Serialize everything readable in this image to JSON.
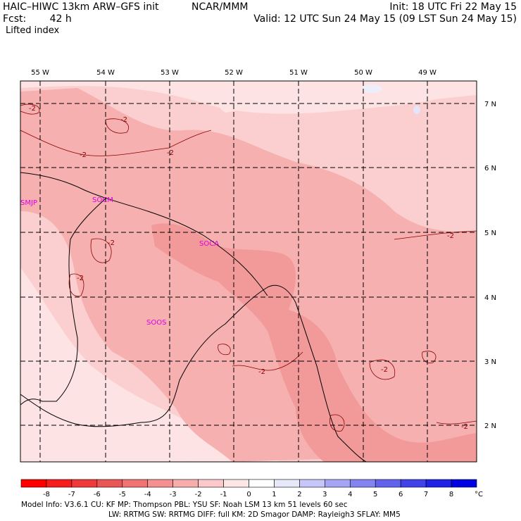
{
  "header": {
    "model": "HAIC–HIWC 13km ARW–GFS init",
    "org": "NCAR/MMM",
    "init": "Init: 18 UTC Fri 22 May 15",
    "fcst_label": "Fcst:",
    "fcst_value": "42 h",
    "valid": "Valid: 12 UTC Sun 24 May 15 (09 LST Sun 24 May 15)",
    "field": "Lifted index"
  },
  "map": {
    "lon_labels": [
      "55 W",
      "54 W",
      "53 W",
      "52 W",
      "51 W",
      "50 W",
      "49 W"
    ],
    "lat_labels": [
      "7 N",
      "6 N",
      "5 N",
      "4 N",
      "3 N",
      "2 N"
    ],
    "contour_label": "-2",
    "stations": [
      "SMJP",
      "SOCM",
      "SOCA",
      "SOOS"
    ],
    "colors": {
      "pale": "#fde3e3",
      "light": "#fbcfcf",
      "medium": "#f6b0b0",
      "strong": "#f29a9a",
      "blue_pale": "#eeeefb",
      "station": "#e000e0"
    }
  },
  "colorbar": {
    "ticks": [
      "-8",
      "-7",
      "-6",
      "-5",
      "-4",
      "-3",
      "-2",
      "-1",
      "0",
      "1",
      "2",
      "3",
      "4",
      "5",
      "6",
      "7",
      "8"
    ],
    "unit": "°C",
    "colors": [
      "#ff0000",
      "#f51d1d",
      "#f03a3a",
      "#ea5656",
      "#f07373",
      "#f49090",
      "#f8adad",
      "#fbc9c9",
      "#fde6e6",
      "#ffffff",
      "#e8e8fb",
      "#c6c6f8",
      "#a5a5f4",
      "#8484f1",
      "#6262ed",
      "#4141ea",
      "#2020e6",
      "#0000e3"
    ]
  },
  "footer": {
    "line1": "Model Info: V3.6.1    CU: KF         MP: Thompson     PBL: YSU        SF: Noah LSM      13 km    51 levels   60 sec",
    "line2": "LW: RRTMG   SW: RRTMG   DIFF: full    KM: 2D Smagor DAMP: Rayleigh3   SFLAY: MM5"
  }
}
